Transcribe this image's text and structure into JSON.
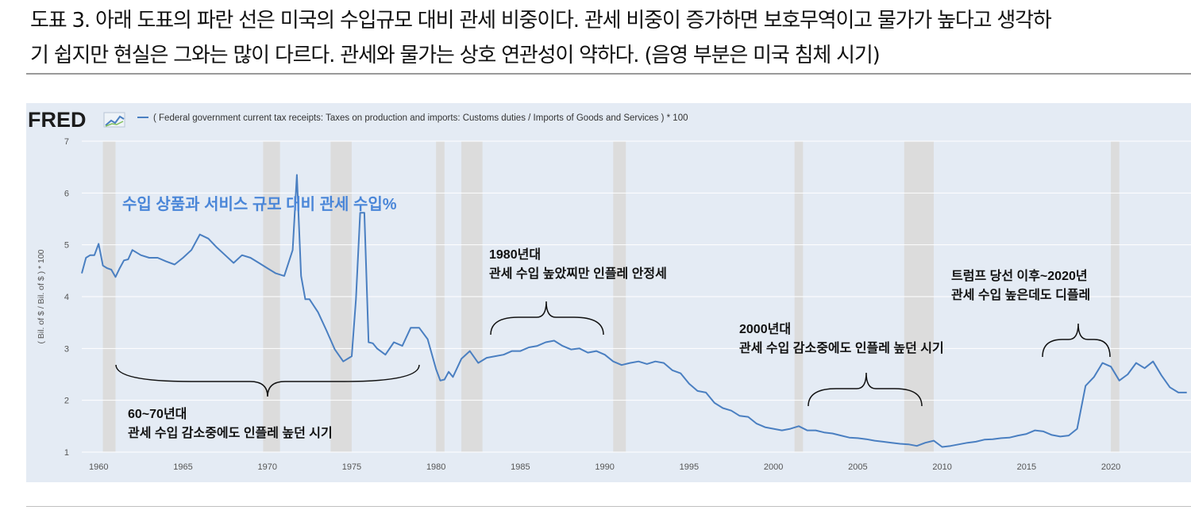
{
  "caption": {
    "line1": "도표 3. 아래 도표의 파란 선은 미국의 수입규모 대비 관세 비중이다. 관세 비중이 증가하면 보호무역이고 물가가 높다고 생각하",
    "line2": "기 쉽지만 현실은 그와는 많이 다르다. 관세와 물가는 상호 연관성이 약하다. (음영 부분은 미국 침체 시기)"
  },
  "fred": {
    "logo": "FRED",
    "legend": "( Federal government current tax receipts: Taxes on production and imports: Customs duties / Imports of Goods and Services ) * 100",
    "line_color": "#4a7fc1",
    "recession_color": "#dcdcdc",
    "plot_bg": "#e4ebf4"
  },
  "chart_data": {
    "type": "line",
    "ylabel": "( Bil. of $ / Bil. of $ ) * 100",
    "ylim": [
      1,
      7
    ],
    "xlim": [
      1959.0,
      2024.75
    ],
    "y_ticks": [
      1,
      2,
      3,
      4,
      5,
      6,
      7
    ],
    "x_ticks": [
      1960,
      1965,
      1970,
      1975,
      1980,
      1985,
      1990,
      1995,
      2000,
      2005,
      2010,
      2015,
      2020
    ],
    "grid": "horizontal",
    "recessions": [
      [
        1960.25,
        1961.0
      ],
      [
        1969.75,
        1970.75
      ],
      [
        1973.75,
        1975.0
      ],
      [
        1980.0,
        1980.5
      ],
      [
        1981.5,
        1982.75
      ],
      [
        1990.5,
        1991.25
      ],
      [
        2001.25,
        2001.75
      ],
      [
        2007.75,
        2009.5
      ],
      [
        2020.0,
        2020.5
      ]
    ],
    "series": [
      {
        "x": [
          1959.0,
          1959.25,
          1959.5,
          1959.75,
          1960.0,
          1960.25,
          1960.5,
          1960.75,
          1961.0,
          1961.25,
          1961.5,
          1961.75,
          1962.0,
          1962.5,
          1963.0,
          1963.5,
          1964.0,
          1964.5,
          1965.0,
          1965.5,
          1966.0,
          1966.5,
          1967.0,
          1967.5,
          1968.0,
          1968.5,
          1969.0,
          1969.5,
          1970.0,
          1970.5,
          1971.0,
          1971.5,
          1971.75,
          1972.0,
          1972.25,
          1972.5,
          1973.0,
          1973.5,
          1974.0,
          1974.5,
          1975.0,
          1975.25,
          1975.5,
          1975.75,
          1976.0,
          1976.25,
          1976.5,
          1977.0,
          1977.5,
          1978.0,
          1978.5,
          1979.0,
          1979.5,
          1980.0,
          1980.25,
          1980.5,
          1980.75,
          1981.0,
          1981.5,
          1982.0,
          1982.5,
          1983.0,
          1983.5,
          1984.0,
          1984.5,
          1985.0,
          1985.5,
          1986.0,
          1986.5,
          1987.0,
          1987.5,
          1988.0,
          1988.5,
          1989.0,
          1989.5,
          1990.0,
          1990.5,
          1991.0,
          1991.5,
          1992.0,
          1992.5,
          1993.0,
          1993.5,
          1994.0,
          1994.5,
          1995.0,
          1995.5,
          1996.0,
          1996.5,
          1997.0,
          1997.5,
          1998.0,
          1998.5,
          1999.0,
          1999.5,
          2000.0,
          2000.5,
          2001.0,
          2001.5,
          2002.0,
          2002.5,
          2003.0,
          2003.5,
          2004.0,
          2004.5,
          2005.0,
          2005.5,
          2006.0,
          2006.5,
          2007.0,
          2007.5,
          2008.0,
          2008.5,
          2009.0,
          2009.5,
          2010.0,
          2010.5,
          2011.0,
          2011.5,
          2012.0,
          2012.5,
          2013.0,
          2013.5,
          2014.0,
          2014.5,
          2015.0,
          2015.5,
          2016.0,
          2016.5,
          2017.0,
          2017.5,
          2018.0,
          2018.5,
          2019.0,
          2019.5,
          2020.0,
          2020.5,
          2021.0,
          2021.5,
          2022.0,
          2022.5,
          2023.0,
          2023.5,
          2024.0,
          2024.5
        ],
        "values": [
          4.45,
          4.75,
          4.8,
          4.8,
          5.02,
          4.6,
          4.55,
          4.52,
          4.38,
          4.55,
          4.7,
          4.72,
          4.9,
          4.8,
          4.75,
          4.75,
          4.68,
          4.62,
          4.75,
          4.9,
          5.2,
          5.12,
          4.95,
          4.8,
          4.65,
          4.8,
          4.75,
          4.65,
          4.55,
          4.45,
          4.4,
          4.9,
          6.35,
          4.4,
          3.95,
          3.95,
          3.7,
          3.35,
          2.98,
          2.75,
          2.85,
          3.95,
          5.62,
          5.62,
          3.12,
          3.1,
          3.0,
          2.88,
          3.12,
          3.05,
          3.4,
          3.4,
          3.18,
          2.6,
          2.38,
          2.4,
          2.55,
          2.45,
          2.8,
          2.95,
          2.72,
          2.82,
          2.85,
          2.88,
          2.95,
          2.95,
          3.02,
          3.05,
          3.12,
          3.15,
          3.05,
          2.98,
          3.0,
          2.92,
          2.95,
          2.88,
          2.75,
          2.68,
          2.72,
          2.75,
          2.7,
          2.75,
          2.72,
          2.58,
          2.52,
          2.32,
          2.18,
          2.15,
          1.95,
          1.85,
          1.8,
          1.7,
          1.68,
          1.55,
          1.48,
          1.45,
          1.42,
          1.45,
          1.5,
          1.42,
          1.42,
          1.38,
          1.36,
          1.32,
          1.28,
          1.27,
          1.25,
          1.22,
          1.2,
          1.18,
          1.16,
          1.15,
          1.12,
          1.18,
          1.22,
          1.1,
          1.12,
          1.15,
          1.18,
          1.2,
          1.24,
          1.25,
          1.27,
          1.28,
          1.32,
          1.35,
          1.42,
          1.4,
          1.33,
          1.3,
          1.32,
          1.45,
          2.28,
          2.45,
          2.72,
          2.65,
          2.38,
          2.5,
          2.72,
          2.62,
          2.75,
          2.48,
          2.25,
          2.15,
          2.15
        ]
      }
    ]
  },
  "annotations": {
    "title": "수입 상품과 서비스 규모 대비 관세 수입%",
    "a1": {
      "line1": "60~70년대",
      "line2": "관세 수입 감소중에도 인플레 높던 시기"
    },
    "a2": {
      "line1": "1980년대",
      "line2": "관세 수입 높았찌만 인플레 안정세"
    },
    "a3": {
      "line1": "2000년대",
      "line2": "관세 수입 감소중에도 인플레 높던 시기"
    },
    "a4": {
      "line1": "트럼프 당선 이후~2020년",
      "line2": "관세 수입 높은데도 디플레"
    }
  }
}
